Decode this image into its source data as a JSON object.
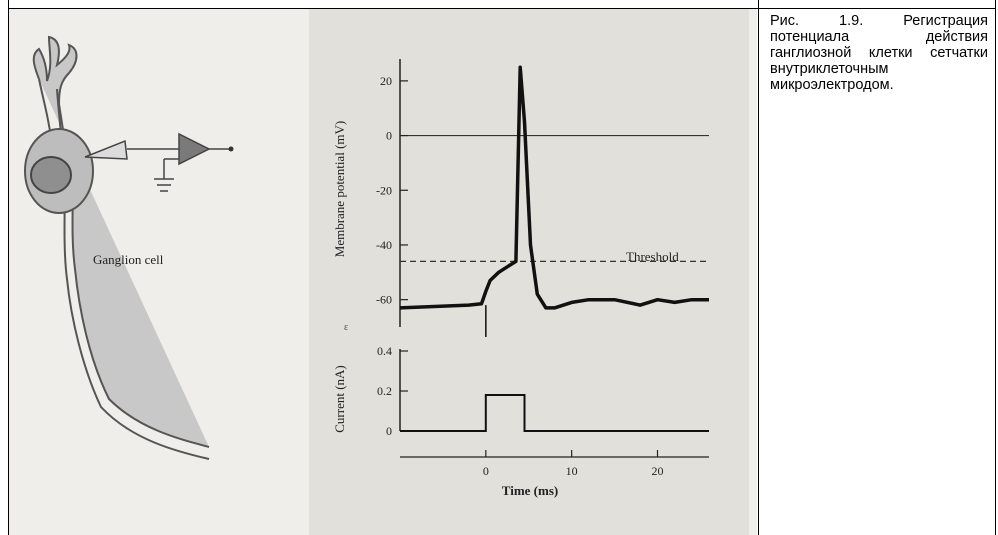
{
  "figure": {
    "cell_label": "Ganglion cell",
    "threshold_label": "Threshold",
    "voltage_axis_label": "Membrane potential (mV)",
    "current_axis_label": "Current (nA)",
    "time_axis_label": "Time (ms)",
    "voltage_ticks": [
      "20",
      "0",
      "-20",
      "-40",
      "-60"
    ],
    "current_ticks": [
      "0.4",
      "0.2",
      "0"
    ],
    "time_ticks": [
      "0",
      "10",
      "20"
    ],
    "stray_mark": "ε"
  },
  "caption": {
    "text": "Рис. 1.9. Регистрация потенциала действия ганглиозной клетки сетчатки внутриклеточным микроэлектродом."
  },
  "chart_data": [
    {
      "type": "line",
      "xlabel": "",
      "ylabel": "Membrane potential (mV)",
      "ylim": [
        -70,
        28
      ],
      "xlim": [
        -10,
        26
      ],
      "annotations": [
        {
          "text": "Threshold",
          "y": -46
        }
      ],
      "reference_lines": [
        {
          "y": 0,
          "style": "solid"
        },
        {
          "y": -46,
          "style": "dashed"
        }
      ],
      "series": [
        {
          "x": [
            -10,
            -6,
            -2,
            -0.5,
            0,
            0.5,
            1.5,
            2.5,
            3.5,
            4,
            4.5,
            5.2,
            6,
            7,
            8,
            10,
            12,
            15,
            18,
            20,
            22,
            24,
            26
          ],
          "values": [
            -63,
            -62.5,
            -62,
            -61.5,
            -57,
            -53,
            -50,
            -48,
            -46,
            25,
            5,
            -40,
            -58,
            -63,
            -63,
            -61,
            -60,
            -60,
            -62,
            -60,
            -61,
            -60,
            -60
          ]
        }
      ]
    },
    {
      "type": "line",
      "xlabel": "Time (ms)",
      "ylabel": "Current (nA)",
      "ylim": [
        0,
        0.4
      ],
      "xlim": [
        -10,
        26
      ],
      "series": [
        {
          "x": [
            -10,
            0,
            0,
            4.5,
            4.5,
            26
          ],
          "values": [
            0,
            0,
            0.18,
            0.18,
            0,
            0
          ]
        }
      ]
    }
  ]
}
